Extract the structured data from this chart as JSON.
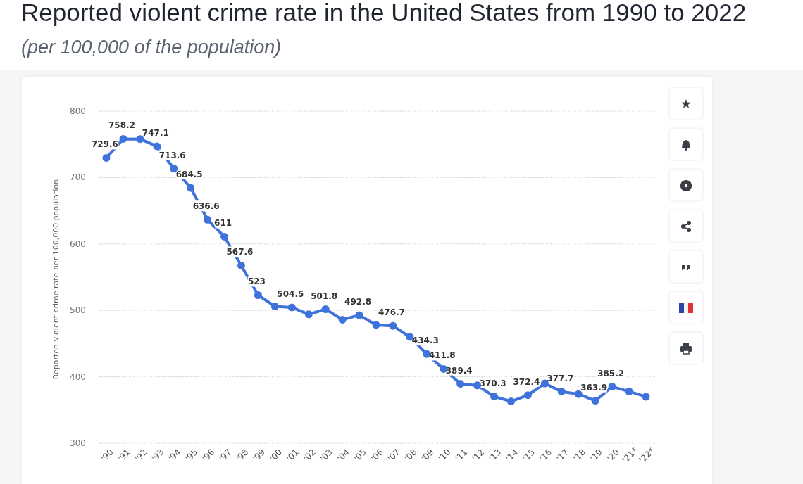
{
  "chart_data": {
    "type": "line",
    "title": "Reported violent crime rate in the United States from 1990 to 2022",
    "subtitle": "(per 100,000 of the population)",
    "ylabel": "Reported violent crime rate per 100,000 population",
    "categories": [
      "'90",
      "'91",
      "'92",
      "'93",
      "'94",
      "'95",
      "'96",
      "'97",
      "'98",
      "'99",
      "'00",
      "'01",
      "'02",
      "'03",
      "'04",
      "'05",
      "'06",
      "'07",
      "'08",
      "'09",
      "'10",
      "'11",
      "'12",
      "'13",
      "'14",
      "'15",
      "'16",
      "'17",
      "'18",
      "'19",
      "'20",
      "'21*",
      "'22*"
    ],
    "series": [
      {
        "color": "#3f72da",
        "values": [
          729.6,
          758.2,
          758,
          747.1,
          713.6,
          684.5,
          636.6,
          611,
          567.6,
          523,
          506,
          504.5,
          494,
          501.8,
          486,
          492.8,
          478,
          476.7,
          460,
          434.3,
          411.8,
          389.4,
          387,
          370.3,
          363,
          372.4,
          390,
          377.7,
          374,
          363.9,
          385.2,
          378,
          370
        ],
        "value_labels": [
          "729.6",
          "758.2",
          null,
          "747.1",
          "713.6",
          "684.5",
          "636.6",
          "611",
          "567.6",
          "523",
          null,
          "504.5",
          null,
          "501.8",
          null,
          "492.8",
          null,
          "476.7",
          null,
          "434.3",
          "411.8",
          "389.4",
          null,
          "370.3",
          null,
          "372.4",
          null,
          "377.7",
          null,
          "363.9",
          "385.2",
          null,
          null
        ]
      }
    ],
    "ylim": [
      300,
      800
    ],
    "yticks": [
      300,
      400,
      500,
      600,
      700,
      800
    ],
    "grid": "y",
    "marker": "circle",
    "line_style": "solid"
  }
}
